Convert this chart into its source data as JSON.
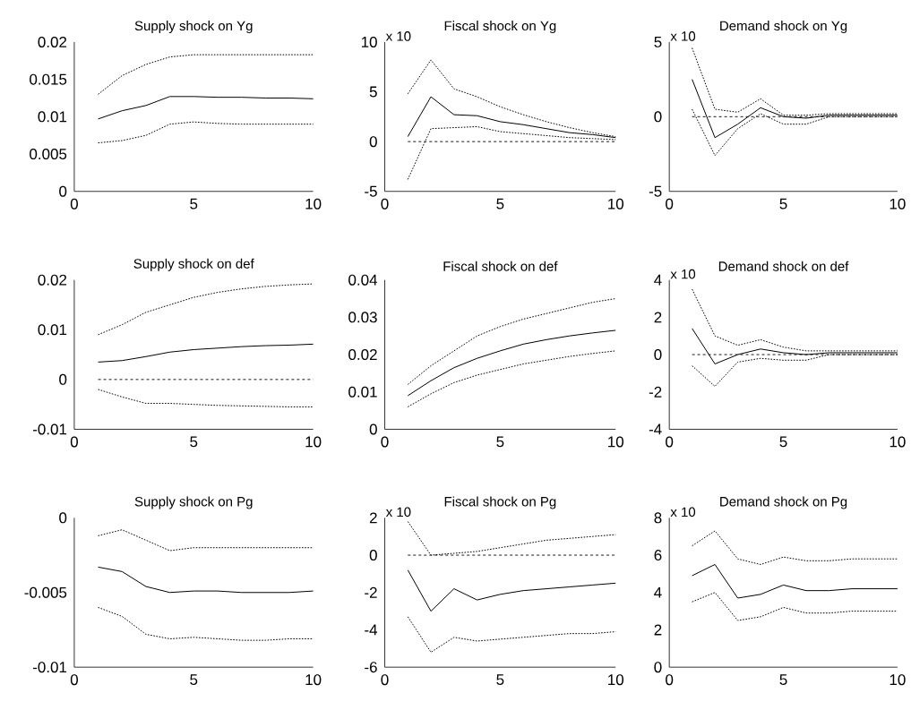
{
  "chart_data": [
    {
      "type": "line",
      "title": "Supply shock on Yg",
      "x": [
        1,
        2,
        3,
        4,
        5,
        6,
        7,
        8,
        9,
        10
      ],
      "xlim": [
        0,
        10
      ],
      "xticks": [
        0,
        5,
        10
      ],
      "ylim": [
        0,
        0.02
      ],
      "yticks": [
        0,
        0.005,
        0.01,
        0.015,
        0.02
      ],
      "series": [
        {
          "color": "#000000",
          "line_style": "solid",
          "values": [
            0.0097,
            0.0108,
            0.0115,
            0.0127,
            0.0127,
            0.0126,
            0.0126,
            0.0125,
            0.0125,
            0.0124
          ]
        },
        {
          "color": "#000000",
          "line_style": "dotted",
          "values": [
            0.013,
            0.0155,
            0.017,
            0.018,
            0.0183,
            0.0183,
            0.0183,
            0.0183,
            0.0183,
            0.0183
          ]
        },
        {
          "color": "#000000",
          "line_style": "dotted",
          "values": [
            0.0065,
            0.0068,
            0.0075,
            0.009,
            0.0093,
            0.0091,
            0.009,
            0.009,
            0.009,
            0.009
          ]
        }
      ]
    },
    {
      "type": "line",
      "title": "Fiscal shock on Yg",
      "annotations": [
        "x 10"
      ],
      "x": [
        1,
        2,
        3,
        4,
        5,
        6,
        7,
        8,
        9,
        10
      ],
      "xlim": [
        0,
        10
      ],
      "xticks": [
        0,
        5,
        10
      ],
      "ylim": [
        -5,
        10
      ],
      "yticks": [
        -5,
        0,
        5,
        10
      ],
      "ref_lines": [
        {
          "axis": "y",
          "value": 0,
          "line_style": "dashed"
        }
      ],
      "series": [
        {
          "color": "#000000",
          "line_style": "solid",
          "values": [
            0.5,
            4.5,
            2.7,
            2.6,
            2.0,
            1.7,
            1.3,
            0.9,
            0.7,
            0.4
          ]
        },
        {
          "color": "#000000",
          "line_style": "dotted",
          "values": [
            4.8,
            8.2,
            5.3,
            4.5,
            3.5,
            2.7,
            2.0,
            1.4,
            0.9,
            0.5
          ]
        },
        {
          "color": "#000000",
          "line_style": "dotted",
          "values": [
            -3.8,
            1.3,
            1.4,
            1.5,
            1.0,
            0.8,
            0.6,
            0.4,
            0.3,
            0.2
          ]
        }
      ]
    },
    {
      "type": "line",
      "title": "Demand shock on Yg",
      "annotations": [
        "x 10"
      ],
      "x": [
        1,
        2,
        3,
        4,
        5,
        6,
        7,
        8,
        9,
        10
      ],
      "xlim": [
        0,
        10
      ],
      "xticks": [
        0,
        5,
        10
      ],
      "ylim": [
        -5,
        5
      ],
      "yticks": [
        -5,
        0,
        5
      ],
      "ref_lines": [
        {
          "axis": "y",
          "value": 0,
          "line_style": "dashed"
        }
      ],
      "series": [
        {
          "color": "#000000",
          "line_style": "solid",
          "values": [
            2.5,
            -1.4,
            -0.5,
            0.6,
            0.0,
            -0.1,
            0.1,
            0.1,
            0.1,
            0.1
          ]
        },
        {
          "color": "#000000",
          "line_style": "dotted",
          "values": [
            4.6,
            0.5,
            0.3,
            1.2,
            0.1,
            0.1,
            0.2,
            0.2,
            0.2,
            0.2
          ]
        },
        {
          "color": "#000000",
          "line_style": "dotted",
          "values": [
            0.5,
            -2.6,
            -0.8,
            0.2,
            -0.5,
            -0.5,
            0.0,
            0.0,
            0.0,
            0.0
          ]
        }
      ]
    },
    {
      "type": "line",
      "title": "Supply shock on def",
      "x": [
        1,
        2,
        3,
        4,
        5,
        6,
        7,
        8,
        9,
        10
      ],
      "xlim": [
        0,
        10
      ],
      "xticks": [
        0,
        5,
        10
      ],
      "ylim": [
        -0.01,
        0.02
      ],
      "yticks": [
        -0.01,
        0,
        0.01,
        0.02
      ],
      "ref_lines": [
        {
          "axis": "y",
          "value": 0,
          "line_style": "dashed"
        }
      ],
      "series": [
        {
          "color": "#000000",
          "line_style": "solid",
          "values": [
            0.0035,
            0.0038,
            0.0046,
            0.0055,
            0.006,
            0.0063,
            0.0066,
            0.0068,
            0.0069,
            0.0071
          ]
        },
        {
          "color": "#000000",
          "line_style": "dotted",
          "values": [
            0.009,
            0.011,
            0.0135,
            0.015,
            0.0165,
            0.0175,
            0.0182,
            0.0187,
            0.019,
            0.0192
          ]
        },
        {
          "color": "#000000",
          "line_style": "dotted",
          "values": [
            -0.002,
            -0.0035,
            -0.0048,
            -0.0048,
            -0.005,
            -0.0052,
            -0.0053,
            -0.0054,
            -0.0055,
            -0.0055
          ]
        }
      ]
    },
    {
      "type": "line",
      "title": "Fiscal shock on def",
      "x": [
        1,
        2,
        3,
        4,
        5,
        6,
        7,
        8,
        9,
        10
      ],
      "xlim": [
        0,
        10
      ],
      "xticks": [
        0,
        5,
        10
      ],
      "ylim": [
        0,
        0.04
      ],
      "yticks": [
        0,
        0.01,
        0.02,
        0.03,
        0.04
      ],
      "series": [
        {
          "color": "#000000",
          "line_style": "solid",
          "values": [
            0.009,
            0.013,
            0.0165,
            0.019,
            0.021,
            0.0228,
            0.024,
            0.025,
            0.0258,
            0.0265
          ]
        },
        {
          "color": "#000000",
          "line_style": "dotted",
          "values": [
            0.012,
            0.017,
            0.021,
            0.025,
            0.0275,
            0.0295,
            0.031,
            0.0325,
            0.034,
            0.035
          ]
        },
        {
          "color": "#000000",
          "line_style": "dotted",
          "values": [
            0.006,
            0.0095,
            0.0125,
            0.0145,
            0.016,
            0.0175,
            0.0185,
            0.0195,
            0.0203,
            0.021
          ]
        }
      ]
    },
    {
      "type": "line",
      "title": "Demand shock on def",
      "annotations": [
        "x 10"
      ],
      "x": [
        1,
        2,
        3,
        4,
        5,
        6,
        7,
        8,
        9,
        10
      ],
      "xlim": [
        0,
        10
      ],
      "xticks": [
        0,
        5,
        10
      ],
      "ylim": [
        -4,
        4
      ],
      "yticks": [
        -4,
        -2,
        0,
        2,
        4
      ],
      "ref_lines": [
        {
          "axis": "y",
          "value": 0,
          "line_style": "dashed"
        }
      ],
      "series": [
        {
          "color": "#000000",
          "line_style": "solid",
          "values": [
            1.4,
            -0.5,
            0.0,
            0.3,
            0.1,
            0.0,
            0.1,
            0.1,
            0.1,
            0.1
          ]
        },
        {
          "color": "#000000",
          "line_style": "dotted",
          "values": [
            3.5,
            1.0,
            0.5,
            0.8,
            0.4,
            0.2,
            0.2,
            0.2,
            0.2,
            0.2
          ]
        },
        {
          "color": "#000000",
          "line_style": "dotted",
          "values": [
            -0.6,
            -1.7,
            -0.4,
            -0.2,
            -0.3,
            -0.3,
            0.0,
            0.0,
            0.0,
            0.0
          ]
        }
      ]
    },
    {
      "type": "line",
      "title": "Supply shock on Pg",
      "x": [
        1,
        2,
        3,
        4,
        5,
        6,
        7,
        8,
        9,
        10
      ],
      "xlim": [
        0,
        10
      ],
      "xticks": [
        0,
        5,
        10
      ],
      "ylim": [
        -0.01,
        0
      ],
      "yticks": [
        -0.01,
        -0.005,
        0
      ],
      "series": [
        {
          "color": "#000000",
          "line_style": "solid",
          "values": [
            -0.0033,
            -0.0036,
            -0.0046,
            -0.005,
            -0.0049,
            -0.0049,
            -0.005,
            -0.005,
            -0.005,
            -0.0049
          ]
        },
        {
          "color": "#000000",
          "line_style": "dotted",
          "values": [
            -0.0012,
            -0.0008,
            -0.0015,
            -0.0022,
            -0.002,
            -0.002,
            -0.002,
            -0.002,
            -0.002,
            -0.002
          ]
        },
        {
          "color": "#000000",
          "line_style": "dotted",
          "values": [
            -0.006,
            -0.0066,
            -0.0078,
            -0.0081,
            -0.008,
            -0.0081,
            -0.0082,
            -0.0082,
            -0.0081,
            -0.0081
          ]
        }
      ]
    },
    {
      "type": "line",
      "title": "Fiscal shock on Pg",
      "annotations": [
        "x 10"
      ],
      "x": [
        1,
        2,
        3,
        4,
        5,
        6,
        7,
        8,
        9,
        10
      ],
      "xlim": [
        0,
        10
      ],
      "xticks": [
        0,
        5,
        10
      ],
      "ylim": [
        -6,
        2
      ],
      "yticks": [
        -6,
        -4,
        -2,
        0,
        2
      ],
      "ref_lines": [
        {
          "axis": "y",
          "value": 0,
          "line_style": "dashed"
        }
      ],
      "series": [
        {
          "color": "#000000",
          "line_style": "solid",
          "values": [
            -0.8,
            -3.0,
            -1.8,
            -2.4,
            -2.1,
            -1.9,
            -1.8,
            -1.7,
            -1.6,
            -1.5
          ]
        },
        {
          "color": "#000000",
          "line_style": "dotted",
          "values": [
            1.8,
            0.0,
            0.1,
            0.2,
            0.4,
            0.6,
            0.8,
            0.9,
            1.0,
            1.1
          ]
        },
        {
          "color": "#000000",
          "line_style": "dotted",
          "values": [
            -3.3,
            -5.2,
            -4.4,
            -4.6,
            -4.5,
            -4.4,
            -4.3,
            -4.2,
            -4.2,
            -4.1
          ]
        }
      ]
    },
    {
      "type": "line",
      "title": "Demand shock on Pg",
      "annotations": [
        "x 10"
      ],
      "x": [
        1,
        2,
        3,
        4,
        5,
        6,
        7,
        8,
        9,
        10
      ],
      "xlim": [
        0,
        10
      ],
      "xticks": [
        0,
        5,
        10
      ],
      "ylim": [
        0,
        8
      ],
      "yticks": [
        0,
        2,
        4,
        6,
        8
      ],
      "series": [
        {
          "color": "#000000",
          "line_style": "solid",
          "values": [
            4.9,
            5.5,
            3.7,
            3.9,
            4.4,
            4.1,
            4.1,
            4.2,
            4.2,
            4.2
          ]
        },
        {
          "color": "#000000",
          "line_style": "dotted",
          "values": [
            6.5,
            7.3,
            5.8,
            5.5,
            5.9,
            5.7,
            5.7,
            5.8,
            5.8,
            5.8
          ]
        },
        {
          "color": "#000000",
          "line_style": "dotted",
          "values": [
            3.5,
            4.0,
            2.5,
            2.7,
            3.2,
            2.9,
            2.9,
            3.0,
            3.0,
            3.0
          ]
        }
      ]
    }
  ]
}
